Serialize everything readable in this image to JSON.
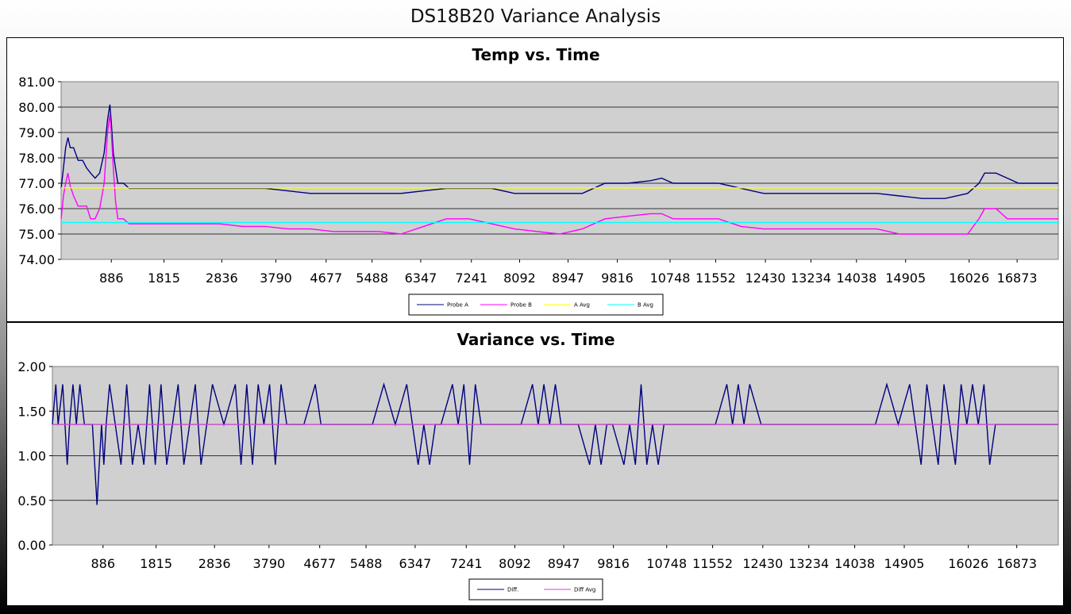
{
  "page": {
    "title": "DS18B20 Variance Analysis"
  },
  "chart_data": [
    {
      "type": "line",
      "title": "Temp vs. Time",
      "xlabel": "",
      "ylabel": "",
      "ylim": [
        74.0,
        81.0
      ],
      "xlim": [
        0,
        17600
      ],
      "y_ticks": [
        "74.00",
        "75.00",
        "76.00",
        "77.00",
        "78.00",
        "79.00",
        "80.00",
        "81.00"
      ],
      "x_ticks": [
        886,
        1815,
        2836,
        3790,
        4677,
        5488,
        6347,
        7241,
        8092,
        8947,
        9816,
        10748,
        11552,
        12430,
        13234,
        14038,
        14905,
        16026,
        16873
      ],
      "grid": true,
      "legend": "bottom-center",
      "series": [
        {
          "name": "Probe A",
          "color": "#000080",
          "x": [
            0,
            40,
            80,
            120,
            160,
            220,
            300,
            380,
            450,
            520,
            600,
            680,
            760,
            820,
            860,
            886,
            920,
            960,
            1000,
            1050,
            1100,
            1200,
            1400,
            1700,
            2000,
            2400,
            2800,
            3200,
            3600,
            4000,
            4400,
            4800,
            5200,
            5600,
            6000,
            6400,
            6800,
            7200,
            7600,
            8000,
            8400,
            8800,
            9200,
            9600,
            10000,
            10400,
            10600,
            10800,
            11200,
            11600,
            12000,
            12400,
            12800,
            13200,
            13600,
            14000,
            14400,
            14800,
            15200,
            15600,
            16000,
            16200,
            16300,
            16500,
            16700,
            16900,
            17200,
            17600
          ],
          "y": [
            76.8,
            77.6,
            78.4,
            78.8,
            78.4,
            78.4,
            77.9,
            77.9,
            77.6,
            77.4,
            77.2,
            77.4,
            78.2,
            79.5,
            80.1,
            79.4,
            78.2,
            77.6,
            77.0,
            77.0,
            77.0,
            76.8,
            76.8,
            76.8,
            76.8,
            76.8,
            76.8,
            76.8,
            76.8,
            76.7,
            76.6,
            76.6,
            76.6,
            76.6,
            76.6,
            76.7,
            76.8,
            76.8,
            76.8,
            76.6,
            76.6,
            76.6,
            76.6,
            77.0,
            77.0,
            77.1,
            77.2,
            77.0,
            77.0,
            77.0,
            76.8,
            76.6,
            76.6,
            76.6,
            76.6,
            76.6,
            76.6,
            76.5,
            76.4,
            76.4,
            76.6,
            77.0,
            77.4,
            77.4,
            77.2,
            77.0,
            77.0,
            77.0
          ]
        },
        {
          "name": "Probe B",
          "color": "#ff00ff",
          "x": [
            0,
            40,
            80,
            120,
            160,
            220,
            300,
            380,
            450,
            520,
            600,
            680,
            760,
            820,
            860,
            886,
            920,
            960,
            1000,
            1050,
            1100,
            1200,
            1400,
            1700,
            2000,
            2400,
            2800,
            3200,
            3600,
            4000,
            4400,
            4800,
            5200,
            5600,
            6000,
            6400,
            6800,
            7200,
            7600,
            8000,
            8400,
            8800,
            9200,
            9600,
            10000,
            10400,
            10600,
            10800,
            11200,
            11600,
            12000,
            12400,
            12800,
            13200,
            13600,
            14000,
            14400,
            14800,
            15200,
            15600,
            16000,
            16200,
            16300,
            16500,
            16700,
            16900,
            17200,
            17600
          ],
          "y": [
            75.6,
            76.5,
            77.0,
            77.4,
            76.9,
            76.5,
            76.1,
            76.1,
            76.1,
            75.6,
            75.6,
            76.0,
            77.0,
            79.0,
            79.7,
            79.0,
            77.6,
            76.3,
            75.6,
            75.6,
            75.6,
            75.4,
            75.4,
            75.4,
            75.4,
            75.4,
            75.4,
            75.3,
            75.3,
            75.2,
            75.2,
            75.1,
            75.1,
            75.1,
            75.0,
            75.3,
            75.6,
            75.6,
            75.4,
            75.2,
            75.1,
            75.0,
            75.2,
            75.6,
            75.7,
            75.8,
            75.8,
            75.6,
            75.6,
            75.6,
            75.3,
            75.2,
            75.2,
            75.2,
            75.2,
            75.2,
            75.2,
            75.0,
            75.0,
            75.0,
            75.0,
            75.6,
            76.0,
            76.0,
            75.6,
            75.6,
            75.6,
            75.6
          ]
        },
        {
          "name": "A Avg",
          "color": "#ffff00",
          "x": [
            0,
            17600
          ],
          "y": [
            76.82,
            76.82
          ]
        },
        {
          "name": "B Avg",
          "color": "#00ffff",
          "x": [
            0,
            17600
          ],
          "y": [
            75.45,
            75.45
          ]
        }
      ]
    },
    {
      "type": "line",
      "title": "Variance vs. Time",
      "xlabel": "",
      "ylabel": "",
      "ylim": [
        0.0,
        2.0
      ],
      "xlim": [
        0,
        17600
      ],
      "y_ticks": [
        "0.00",
        "0.50",
        "1.00",
        "1.50",
        "2.00"
      ],
      "x_ticks": [
        886,
        1815,
        2836,
        3790,
        4677,
        5488,
        6347,
        7241,
        8092,
        8947,
        9816,
        10748,
        11552,
        12430,
        13234,
        14038,
        14905,
        16026,
        16873
      ],
      "grid": true,
      "legend": "bottom-center",
      "series": [
        {
          "name": "Diff.",
          "color": "#000080",
          "x": [
            0,
            60,
            100,
            180,
            260,
            300,
            360,
            420,
            480,
            560,
            700,
            780,
            820,
            860,
            900,
            940,
            1000,
            1100,
            1200,
            1300,
            1400,
            1500,
            1600,
            1700,
            1800,
            1900,
            2000,
            2100,
            2200,
            2300,
            2400,
            2500,
            2600,
            2700,
            2800,
            3000,
            3200,
            3300,
            3400,
            3500,
            3600,
            3700,
            3800,
            3900,
            4000,
            4100,
            4200,
            4400,
            4600,
            4700,
            4800,
            5000,
            5200,
            5600,
            5800,
            6000,
            6200,
            6300,
            6400,
            6500,
            6600,
            6700,
            6800,
            7000,
            7100,
            7200,
            7300,
            7400,
            7500,
            7600,
            7800,
            8000,
            8200,
            8400,
            8500,
            8600,
            8700,
            8800,
            8900,
            9000,
            9200,
            9400,
            9500,
            9600,
            9700,
            9800,
            10000,
            10100,
            10200,
            10300,
            10400,
            10500,
            10600,
            10700,
            10800,
            11000,
            11200,
            11400,
            11600,
            11800,
            11900,
            12000,
            12100,
            12200,
            12400,
            12800,
            13200,
            13600,
            14000,
            14400,
            14600,
            14800,
            15000,
            15200,
            15300,
            15400,
            15500,
            15600,
            15700,
            15800,
            15900,
            16000,
            16100,
            16200,
            16300,
            16400,
            16500,
            16600,
            16800,
            17000,
            17200,
            17400,
            17600
          ],
          "y": [
            1.35,
            1.8,
            1.35,
            1.8,
            0.9,
            1.35,
            1.8,
            1.35,
            1.8,
            1.35,
            1.35,
            0.45,
            0.9,
            1.35,
            0.9,
            1.35,
            1.8,
            1.35,
            0.9,
            1.8,
            0.9,
            1.35,
            0.9,
            1.8,
            0.9,
            1.8,
            0.9,
            1.35,
            1.8,
            0.9,
            1.35,
            1.8,
            0.9,
            1.35,
            1.8,
            1.35,
            1.8,
            0.9,
            1.8,
            0.9,
            1.8,
            1.35,
            1.8,
            0.9,
            1.8,
            1.35,
            1.35,
            1.35,
            1.8,
            1.35,
            1.35,
            1.35,
            1.35,
            1.35,
            1.8,
            1.35,
            1.8,
            1.35,
            0.9,
            1.35,
            0.9,
            1.35,
            1.35,
            1.8,
            1.35,
            1.8,
            0.9,
            1.8,
            1.35,
            1.35,
            1.35,
            1.35,
            1.35,
            1.8,
            1.35,
            1.8,
            1.35,
            1.8,
            1.35,
            1.35,
            1.35,
            0.9,
            1.35,
            0.9,
            1.35,
            1.35,
            0.9,
            1.35,
            0.9,
            1.8,
            0.9,
            1.35,
            0.9,
            1.35,
            1.35,
            1.35,
            1.35,
            1.35,
            1.35,
            1.8,
            1.35,
            1.8,
            1.35,
            1.8,
            1.35,
            1.35,
            1.35,
            1.35,
            1.35,
            1.35,
            1.8,
            1.35,
            1.8,
            0.9,
            1.8,
            1.35,
            0.9,
            1.8,
            1.35,
            0.9,
            1.8,
            1.35,
            1.8,
            1.35,
            1.8,
            0.9,
            1.35,
            1.35,
            1.35,
            1.35,
            1.35,
            1.35,
            1.35
          ]
        },
        {
          "name": "Diff Avg",
          "color": "#cc44cc",
          "x": [
            0,
            17600
          ],
          "y": [
            1.35,
            1.35
          ]
        }
      ]
    }
  ]
}
